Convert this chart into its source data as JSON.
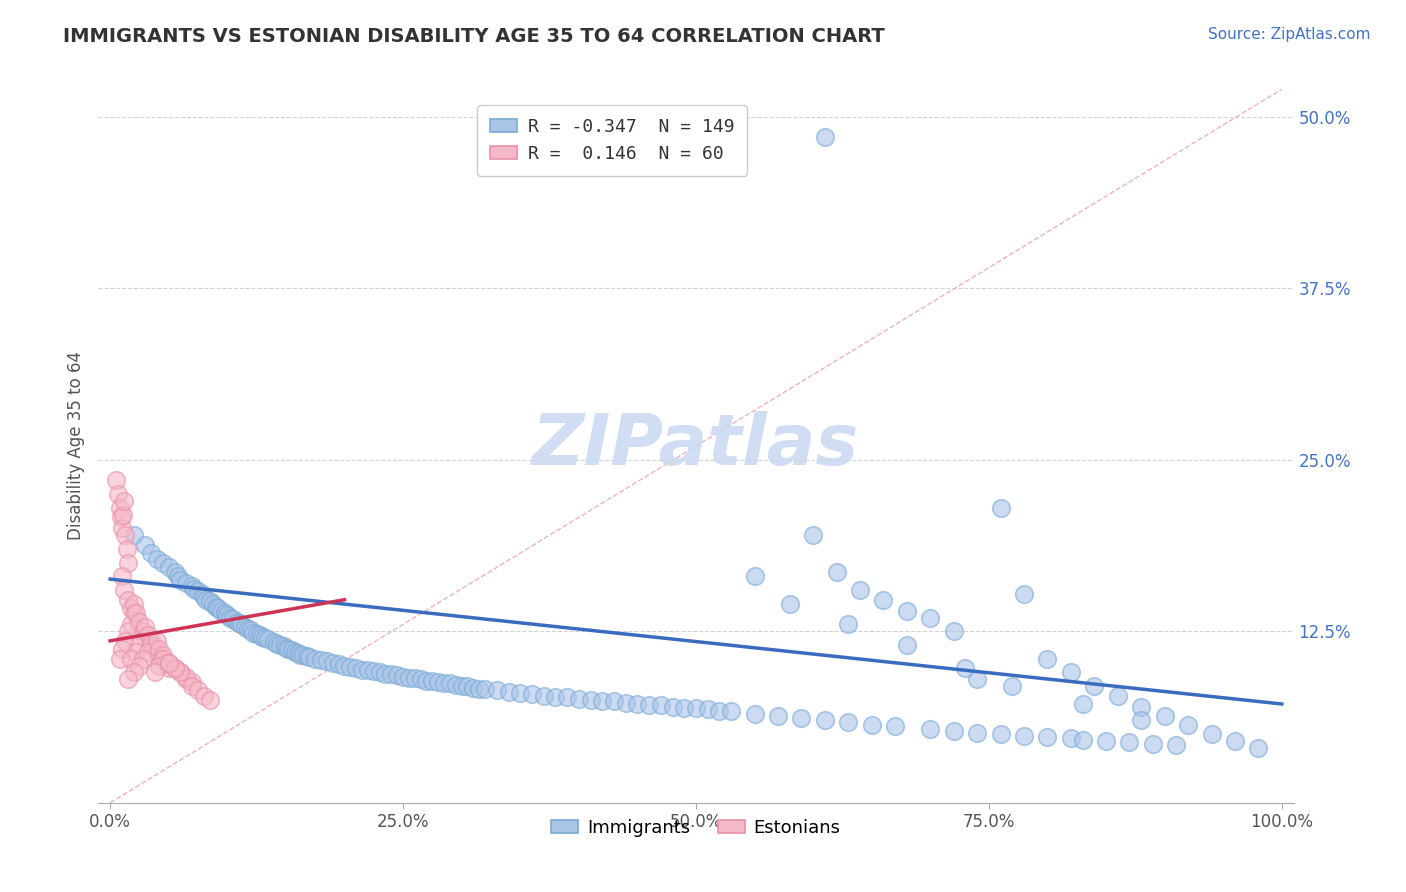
{
  "title": "IMMIGRANTS VS ESTONIAN DISABILITY AGE 35 TO 64 CORRELATION CHART",
  "source": "Source: ZipAtlas.com",
  "ylabel": "Disability Age 35 to 64",
  "xlim": [
    -0.01,
    1.01
  ],
  "ylim": [
    0,
    0.52
  ],
  "xticks": [
    0,
    0.25,
    0.5,
    0.75,
    1.0
  ],
  "xticklabels": [
    "0.0%",
    "25.0%",
    "50.0%",
    "75.0%",
    "100.0%"
  ],
  "yticks": [
    0.125,
    0.25,
    0.375,
    0.5
  ],
  "yticklabels": [
    "12.5%",
    "25.0%",
    "37.5%",
    "50.0%"
  ],
  "legend_r1": "R = -0.347",
  "legend_n1": "N = 149",
  "legend_r2": "R =  0.146",
  "legend_n2": "N =  60",
  "blue_face": "#aac4e8",
  "blue_edge": "#7aaad4",
  "pink_face": "#f5b8c8",
  "pink_edge": "#e890a8",
  "blue_line": "#3a6bbf",
  "pink_line": "#cc3355",
  "diag_color": "#e8a0b0",
  "watermark_color": "#c8d8f0",
  "background": "#ffffff",
  "grid_color": "#c8c8c8",
  "title_color": "#333333",
  "source_color": "#4472c4",
  "tick_color": "#4472c4",
  "ylabel_color": "#555555",
  "blue_trend_x0": 0.0,
  "blue_trend_y0": 0.163,
  "blue_trend_x1": 1.0,
  "blue_trend_y1": 0.072,
  "pink_trend_x0": 0.0,
  "pink_trend_y0": 0.118,
  "pink_trend_x1": 0.2,
  "pink_trend_y1": 0.148,
  "imm_x": [
    0.02,
    0.03,
    0.035,
    0.04,
    0.045,
    0.05,
    0.055,
    0.058,
    0.06,
    0.065,
    0.07,
    0.072,
    0.075,
    0.078,
    0.08,
    0.082,
    0.085,
    0.088,
    0.09,
    0.092,
    0.095,
    0.098,
    0.1,
    0.102,
    0.105,
    0.108,
    0.11,
    0.112,
    0.115,
    0.118,
    0.12,
    0.122,
    0.125,
    0.128,
    0.13,
    0.132,
    0.135,
    0.14,
    0.142,
    0.145,
    0.148,
    0.15,
    0.152,
    0.155,
    0.158,
    0.16,
    0.162,
    0.165,
    0.168,
    0.17,
    0.175,
    0.18,
    0.185,
    0.19,
    0.195,
    0.2,
    0.205,
    0.21,
    0.215,
    0.22,
    0.225,
    0.23,
    0.235,
    0.24,
    0.245,
    0.25,
    0.255,
    0.26,
    0.265,
    0.27,
    0.275,
    0.28,
    0.285,
    0.29,
    0.295,
    0.3,
    0.305,
    0.31,
    0.315,
    0.32,
    0.33,
    0.34,
    0.35,
    0.36,
    0.37,
    0.38,
    0.39,
    0.4,
    0.41,
    0.42,
    0.43,
    0.44,
    0.45,
    0.46,
    0.47,
    0.48,
    0.49,
    0.5,
    0.51,
    0.52,
    0.53,
    0.55,
    0.57,
    0.59,
    0.61,
    0.63,
    0.65,
    0.67,
    0.7,
    0.72,
    0.74,
    0.76,
    0.78,
    0.8,
    0.82,
    0.83,
    0.85,
    0.87,
    0.89,
    0.91,
    0.6,
    0.62,
    0.64,
    0.66,
    0.68,
    0.7,
    0.72,
    0.74,
    0.76,
    0.78,
    0.8,
    0.82,
    0.84,
    0.86,
    0.88,
    0.9,
    0.92,
    0.94,
    0.96,
    0.98,
    0.55,
    0.58,
    0.63,
    0.68,
    0.73,
    0.77,
    0.83,
    0.88,
    0.61
  ],
  "imm_y": [
    0.195,
    0.188,
    0.182,
    0.178,
    0.175,
    0.172,
    0.168,
    0.165,
    0.162,
    0.16,
    0.158,
    0.156,
    0.154,
    0.152,
    0.15,
    0.148,
    0.147,
    0.145,
    0.143,
    0.142,
    0.14,
    0.138,
    0.137,
    0.135,
    0.134,
    0.132,
    0.131,
    0.13,
    0.128,
    0.127,
    0.126,
    0.124,
    0.123,
    0.122,
    0.121,
    0.12,
    0.119,
    0.117,
    0.116,
    0.115,
    0.114,
    0.113,
    0.112,
    0.111,
    0.11,
    0.109,
    0.108,
    0.108,
    0.107,
    0.106,
    0.105,
    0.104,
    0.103,
    0.102,
    0.101,
    0.1,
    0.099,
    0.098,
    0.097,
    0.097,
    0.096,
    0.095,
    0.094,
    0.094,
    0.093,
    0.092,
    0.091,
    0.091,
    0.09,
    0.089,
    0.089,
    0.088,
    0.087,
    0.087,
    0.086,
    0.085,
    0.085,
    0.084,
    0.083,
    0.083,
    0.082,
    0.081,
    0.08,
    0.079,
    0.078,
    0.077,
    0.077,
    0.076,
    0.075,
    0.074,
    0.074,
    0.073,
    0.072,
    0.071,
    0.071,
    0.07,
    0.069,
    0.069,
    0.068,
    0.067,
    0.067,
    0.065,
    0.063,
    0.062,
    0.06,
    0.059,
    0.057,
    0.056,
    0.054,
    0.052,
    0.051,
    0.05,
    0.049,
    0.048,
    0.047,
    0.046,
    0.045,
    0.044,
    0.043,
    0.042,
    0.195,
    0.168,
    0.155,
    0.148,
    0.14,
    0.135,
    0.125,
    0.09,
    0.215,
    0.152,
    0.105,
    0.095,
    0.085,
    0.078,
    0.07,
    0.063,
    0.057,
    0.05,
    0.045,
    0.04,
    0.165,
    0.145,
    0.13,
    0.115,
    0.098,
    0.085,
    0.072,
    0.06,
    0.485
  ],
  "est_x": [
    0.005,
    0.007,
    0.008,
    0.009,
    0.01,
    0.011,
    0.012,
    0.013,
    0.014,
    0.015,
    0.01,
    0.012,
    0.015,
    0.018,
    0.02,
    0.018,
    0.015,
    0.013,
    0.01,
    0.008,
    0.02,
    0.022,
    0.025,
    0.028,
    0.03,
    0.025,
    0.022,
    0.018,
    0.03,
    0.032,
    0.035,
    0.038,
    0.04,
    0.035,
    0.032,
    0.028,
    0.025,
    0.02,
    0.015,
    0.04,
    0.042,
    0.045,
    0.048,
    0.05,
    0.045,
    0.042,
    0.038,
    0.05,
    0.055,
    0.06,
    0.065,
    0.07,
    0.065,
    0.06,
    0.055,
    0.05,
    0.07,
    0.075,
    0.08,
    0.085
  ],
  "est_y": [
    0.235,
    0.225,
    0.215,
    0.208,
    0.2,
    0.21,
    0.22,
    0.195,
    0.185,
    0.175,
    0.165,
    0.155,
    0.148,
    0.142,
    0.138,
    0.13,
    0.125,
    0.118,
    0.112,
    0.105,
    0.145,
    0.138,
    0.132,
    0.125,
    0.12,
    0.115,
    0.11,
    0.105,
    0.128,
    0.122,
    0.118,
    0.112,
    0.108,
    0.115,
    0.11,
    0.105,
    0.1,
    0.095,
    0.09,
    0.118,
    0.112,
    0.108,
    0.102,
    0.098,
    0.105,
    0.1,
    0.095,
    0.102,
    0.098,
    0.095,
    0.09,
    0.088,
    0.092,
    0.095,
    0.098,
    0.102,
    0.085,
    0.082,
    0.078,
    0.075
  ]
}
